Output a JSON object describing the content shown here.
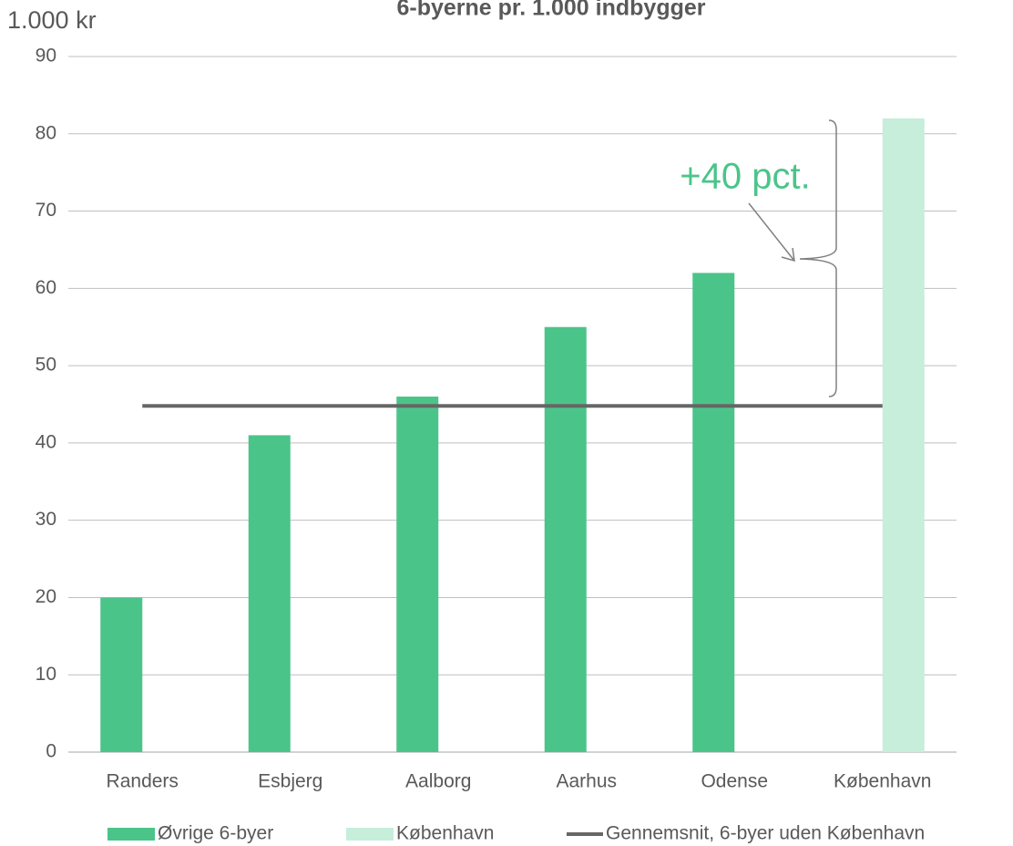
{
  "chart_data": {
    "type": "bar",
    "title": "6-byerne pr. 1.000 indbygger",
    "y_label": "1.000 kr",
    "annotation": "+40 pct.",
    "categories": [
      "Randers",
      "Esbjerg",
      "Aalborg",
      "Aarhus",
      "Odense",
      "København"
    ],
    "series": [
      {
        "name": "Øvrige 6-byer",
        "color": "#4bc48a",
        "values": [
          20,
          41,
          46,
          55,
          62,
          null
        ]
      },
      {
        "name": "København",
        "color": "#c6eedb",
        "values": [
          null,
          null,
          null,
          null,
          null,
          82
        ]
      },
      {
        "name": "Gennemsnit, 6-byer uden København",
        "color": "#666666",
        "type": "line",
        "values": [
          44.8,
          44.8,
          44.8,
          44.8,
          44.8,
          44.8
        ]
      }
    ],
    "ylim": [
      0,
      90
    ],
    "yticks": [
      0,
      10,
      20,
      30,
      40,
      50,
      60,
      70,
      80,
      90
    ],
    "grid": true
  }
}
